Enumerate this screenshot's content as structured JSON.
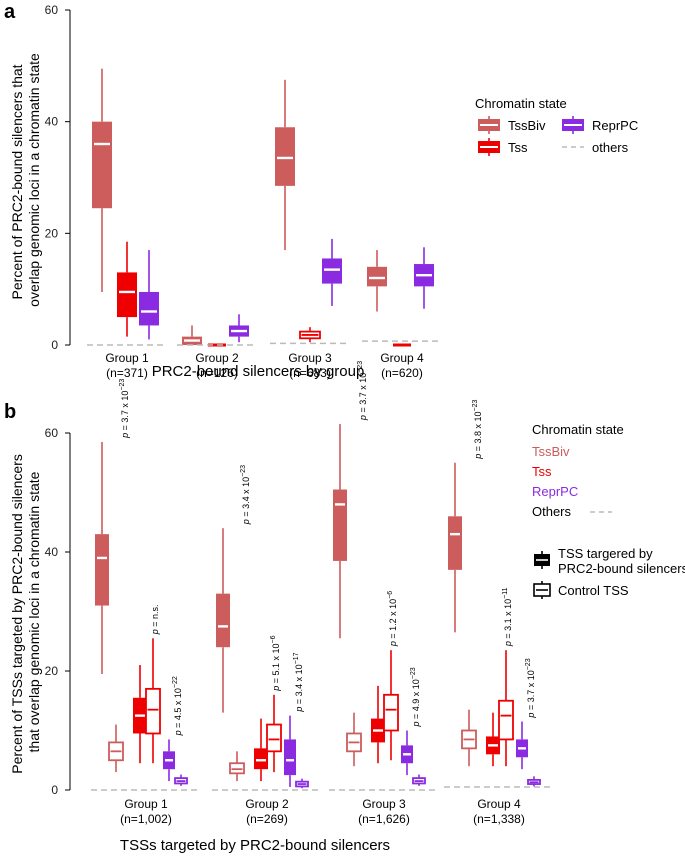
{
  "chart_data": [
    {
      "panel": "a",
      "type": "box",
      "xlabel": "PRC2-bound silencers by group",
      "ylabel": [
        "Percent of PRC2-bound silencers that",
        "overlap genomic loci in a chromatin state"
      ],
      "ylim": [
        0,
        60
      ],
      "yticks": [
        "0",
        "20",
        "40",
        "60"
      ],
      "categories": [
        {
          "name": "Group 1",
          "n": "(n=371)"
        },
        {
          "name": "Group 2",
          "n": "(n=126)"
        },
        {
          "name": "Group 3",
          "n": "(n=683)"
        },
        {
          "name": "Group 4",
          "n": "(n=620)"
        }
      ],
      "legend": {
        "title": "Chromatin state",
        "entries": [
          {
            "label": "TssBiv",
            "color": "#cd5c5c",
            "style": "filled"
          },
          {
            "label": "ReprPC",
            "color": "#8a2be2",
            "style": "filled"
          },
          {
            "label": "Tss",
            "color": "#ee0000",
            "style": "filled"
          },
          {
            "label": "others",
            "color": "#bbbbbb",
            "style": "dashed"
          }
        ]
      },
      "series": [
        {
          "name": "TssBiv",
          "color": "#cd5c5c",
          "boxes": [
            {
              "min": 9.5,
              "q1": 24.5,
              "median": 36,
              "q3": 40,
              "max": 49.5
            },
            {
              "min": 0,
              "q1": 0,
              "median": 0.8,
              "q3": 1.5,
              "max": 3.5
            },
            {
              "min": 17,
              "q1": 28.5,
              "median": 33.5,
              "q3": 39,
              "max": 47.5
            },
            {
              "min": 6,
              "q1": 10.5,
              "median": 12,
              "q3": 14,
              "max": 17
            }
          ]
        },
        {
          "name": "Tss",
          "color": "#ee0000",
          "boxes": [
            {
              "min": 1.5,
              "q1": 5,
              "median": 9.5,
              "q3": 13,
              "max": 18.5
            },
            {
              "min": 0,
              "q1": 0,
              "median": 0,
              "q3": 0,
              "max": 0
            },
            {
              "min": 0.5,
              "q1": 1.2,
              "median": 1.8,
              "q3": 2.4,
              "max": 3.2
            },
            {
              "min": 0,
              "q1": 0,
              "median": 0,
              "q3": 0,
              "max": 0
            }
          ]
        },
        {
          "name": "ReprPC",
          "color": "#8a2be2",
          "boxes": [
            {
              "min": 1,
              "q1": 3.5,
              "median": 6,
              "q3": 9.5,
              "max": 17
            },
            {
              "min": 0.5,
              "q1": 1.5,
              "median": 2.5,
              "q3": 3.5,
              "max": 5.5
            },
            {
              "min": 7,
              "q1": 11,
              "median": 13.5,
              "q3": 15.5,
              "max": 19
            },
            {
              "min": 6.5,
              "q1": 10.5,
              "median": 12.5,
              "q3": 14.5,
              "max": 17.5
            }
          ]
        },
        {
          "name": "others",
          "color": "#bbbbbb",
          "values": [
            0,
            0,
            0.3,
            0.7
          ]
        }
      ]
    },
    {
      "panel": "b",
      "type": "box",
      "xlabel": "TSSs targeted by PRC2-bound silencers",
      "ylabel": [
        "Percent of TSSs targeted by PRC2-bound silencers",
        "that overlap genomic loci in a chromatin state"
      ],
      "ylim": [
        0,
        60
      ],
      "yticks": [
        "0",
        "20",
        "40",
        "60"
      ],
      "categories": [
        {
          "name": "Group 1",
          "n": "(n=1,002)"
        },
        {
          "name": "Group 2",
          "n": "(n=269)"
        },
        {
          "name": "Group 3",
          "n": "(n=1,626)"
        },
        {
          "name": "Group 4",
          "n": "(n=1,338)"
        }
      ],
      "legend": {
        "title": "Chromatin state",
        "entries": [
          {
            "label": "TssBiv",
            "color": "#cd5c5c"
          },
          {
            "label": "Tss",
            "color": "#ee0000"
          },
          {
            "label": "ReprPC",
            "color": "#8a2be2"
          },
          {
            "label": "Others",
            "color": "#000000",
            "line_color": "#bbbbbb"
          }
        ],
        "box_styles": [
          {
            "label_lines": [
              "TSS targered by",
              "PRC2-bound silencers"
            ],
            "style": "filled"
          },
          {
            "label_lines": [
              "Control TSS"
            ],
            "style": "open"
          }
        ]
      },
      "series": [
        {
          "name": "TssBiv (targeted)",
          "color": "#cd5c5c",
          "filled": true,
          "boxes": [
            {
              "min": 19.5,
              "q1": 31,
              "median": 39,
              "q3": 43,
              "max": 58.5
            },
            {
              "min": 13,
              "q1": 24,
              "median": 27.5,
              "q3": 33,
              "max": 44
            },
            {
              "min": 25.5,
              "q1": 38.5,
              "median": 48,
              "q3": 50.5,
              "max": 61.5
            },
            {
              "min": 26.5,
              "q1": 37,
              "median": 43,
              "q3": 46,
              "max": 55
            }
          ]
        },
        {
          "name": "TssBiv (control)",
          "color": "#cd5c5c",
          "filled": false,
          "boxes": [
            {
              "min": 3,
              "q1": 5,
              "median": 6.5,
              "q3": 8,
              "max": 11
            },
            {
              "min": 1.5,
              "q1": 2.8,
              "median": 3.5,
              "q3": 4.5,
              "max": 6.5
            },
            {
              "min": 4,
              "q1": 6.5,
              "median": 8,
              "q3": 9.5,
              "max": 13
            },
            {
              "min": 4,
              "q1": 7,
              "median": 8.5,
              "q3": 10,
              "max": 13.5
            }
          ]
        },
        {
          "name": "Tss (targeted)",
          "color": "#ee0000",
          "filled": true,
          "boxes": [
            {
              "min": 4.5,
              "q1": 9.5,
              "median": 12.5,
              "q3": 15.5,
              "max": 21
            },
            {
              "min": 1.5,
              "q1": 3.5,
              "median": 5,
              "q3": 7,
              "max": 12
            },
            {
              "min": 4.5,
              "q1": 8,
              "median": 10,
              "q3": 12,
              "max": 17.5
            },
            {
              "min": 4,
              "q1": 6,
              "median": 7.5,
              "q3": 9,
              "max": 13
            }
          ]
        },
        {
          "name": "Tss (control)",
          "color": "#ee0000",
          "filled": false,
          "boxes": [
            {
              "min": 4.5,
              "q1": 9.5,
              "median": 13.5,
              "q3": 17,
              "max": 25.5
            },
            {
              "min": 3,
              "q1": 6.5,
              "median": 8.5,
              "q3": 11,
              "max": 16
            },
            {
              "min": 5,
              "q1": 10,
              "median": 13.5,
              "q3": 16,
              "max": 23.5
            },
            {
              "min": 4,
              "q1": 8.5,
              "median": 12.5,
              "q3": 15,
              "max": 23.5
            }
          ]
        },
        {
          "name": "ReprPC (targeted)",
          "color": "#8a2be2",
          "filled": true,
          "boxes": [
            {
              "min": 1.5,
              "q1": 3.5,
              "median": 5,
              "q3": 6.5,
              "max": 8.5
            },
            {
              "min": 0.5,
              "q1": 2.5,
              "median": 5,
              "q3": 8.5,
              "max": 12.5
            },
            {
              "min": 2.5,
              "q1": 4.5,
              "median": 6,
              "q3": 7.5,
              "max": 10
            },
            {
              "min": 3.5,
              "q1": 5.5,
              "median": 7,
              "q3": 8.5,
              "max": 11.5
            }
          ]
        },
        {
          "name": "ReprPC (control)",
          "color": "#8a2be2",
          "filled": false,
          "boxes": [
            {
              "min": 0.7,
              "q1": 1.1,
              "median": 1.5,
              "q3": 2.0,
              "max": 2.6
            },
            {
              "min": 0.3,
              "q1": 0.6,
              "median": 1.0,
              "q3": 1.4,
              "max": 1.9
            },
            {
              "min": 0.7,
              "q1": 1.1,
              "median": 1.5,
              "q3": 2.0,
              "max": 2.6
            },
            {
              "min": 0.6,
              "q1": 1.0,
              "median": 1.3,
              "q3": 1.7,
              "max": 2.3
            }
          ]
        },
        {
          "name": "Others",
          "color": "#bbbbbb",
          "values": [
            0,
            0,
            0,
            0.5
          ]
        }
      ],
      "pvalues": [
        {
          "group": 0,
          "state": "TssBiv",
          "mant": "3.7",
          "exp": "−23"
        },
        {
          "group": 0,
          "state": "Tss",
          "text": "n.s."
        },
        {
          "group": 0,
          "state": "ReprPC",
          "mant": "4.5",
          "exp": "−22"
        },
        {
          "group": 1,
          "state": "TssBiv",
          "mant": "3.4",
          "exp": "−23"
        },
        {
          "group": 1,
          "state": "Tss",
          "mant": "5.1",
          "exp": "−6"
        },
        {
          "group": 1,
          "state": "ReprPC",
          "mant": "3.4",
          "exp": "−17"
        },
        {
          "group": 2,
          "state": "TssBiv",
          "mant": "3.7",
          "exp": "−23"
        },
        {
          "group": 2,
          "state": "Tss",
          "mant": "1.2",
          "exp": "−6"
        },
        {
          "group": 2,
          "state": "ReprPC",
          "mant": "4.9",
          "exp": "−23"
        },
        {
          "group": 3,
          "state": "TssBiv",
          "mant": "3.8",
          "exp": "−23"
        },
        {
          "group": 3,
          "state": "Tss",
          "mant": "3.1",
          "exp": "−11"
        },
        {
          "group": 3,
          "state": "ReprPC",
          "mant": "3.7",
          "exp": "−23"
        }
      ]
    }
  ]
}
